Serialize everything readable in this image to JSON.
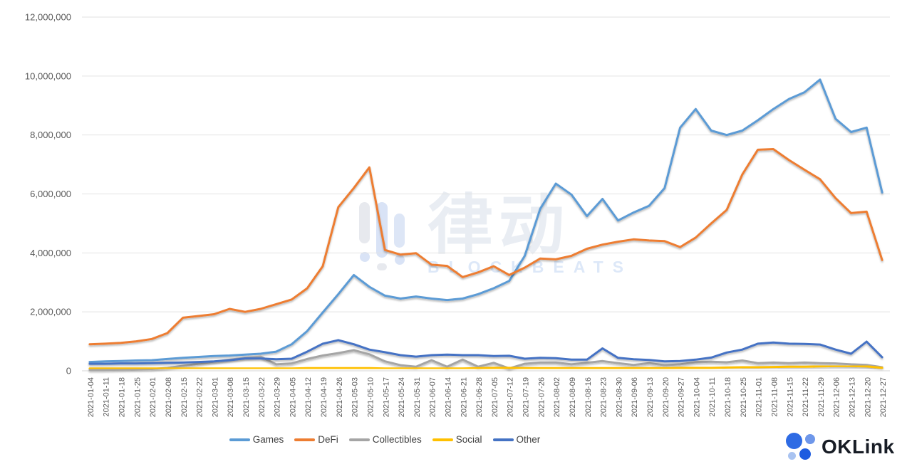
{
  "watermark": {
    "cn": "律动",
    "en": "BLOCKBEATS"
  },
  "brand": {
    "name": "OKLink"
  },
  "chart_data": {
    "type": "line",
    "title": "",
    "xlabel": "",
    "ylabel": "",
    "ylim": [
      0,
      12000000
    ],
    "grid": true,
    "legend_position": "bottom",
    "y_ticks": [
      "0",
      "2,000,000",
      "4,000,000",
      "6,000,000",
      "8,000,000",
      "10,000,000",
      "12,000,000"
    ],
    "categories": [
      "2021-01-04",
      "2021-01-11",
      "2021-01-18",
      "2021-01-25",
      "2021-02-01",
      "2021-02-08",
      "2021-02-15",
      "2021-02-22",
      "2021-03-01",
      "2021-03-08",
      "2021-03-15",
      "2021-03-22",
      "2021-03-29",
      "2021-04-05",
      "2021-04-12",
      "2021-04-19",
      "2021-04-26",
      "2021-05-03",
      "2021-05-10",
      "2021-05-17",
      "2021-05-24",
      "2021-05-31",
      "2021-06-07",
      "2021-06-14",
      "2021-06-21",
      "2021-06-28",
      "2021-07-05",
      "2021-07-12",
      "2021-07-19",
      "2021-07-26",
      "2021-08-02",
      "2021-08-09",
      "2021-08-16",
      "2021-08-23",
      "2021-08-30",
      "2021-09-06",
      "2021-09-13",
      "2021-09-20",
      "2021-09-27",
      "2021-10-04",
      "2021-10-11",
      "2021-10-18",
      "2021-10-25",
      "2021-11-01",
      "2021-11-08",
      "2021-11-15",
      "2021-11-22",
      "2021-11-29",
      "2021-12-06",
      "2021-12-13",
      "2021-12-20",
      "2021-12-27"
    ],
    "series": [
      {
        "name": "Games",
        "color": "#5B9BD5",
        "values": [
          300000,
          320000,
          330000,
          350000,
          360000,
          400000,
          440000,
          470000,
          500000,
          520000,
          550000,
          580000,
          650000,
          900000,
          1350000,
          1980000,
          2600000,
          3250000,
          2850000,
          2550000,
          2450000,
          2520000,
          2450000,
          2400000,
          2450000,
          2600000,
          2800000,
          3050000,
          3900000,
          5500000,
          6350000,
          5980000,
          5250000,
          5830000,
          5100000,
          5370000,
          5600000,
          6200000,
          8250000,
          8880000,
          8150000,
          8000000,
          8150000,
          8500000,
          8880000,
          9220000,
          9450000,
          9880000,
          8550000,
          8100000,
          8250000,
          6050000
        ]
      },
      {
        "name": "DeFi",
        "color": "#ED7D31",
        "values": [
          900000,
          920000,
          950000,
          1000000,
          1080000,
          1280000,
          1800000,
          1860000,
          1920000,
          2100000,
          2000000,
          2100000,
          2260000,
          2420000,
          2800000,
          3550000,
          5550000,
          6200000,
          6900000,
          4100000,
          3940000,
          3990000,
          3600000,
          3560000,
          3180000,
          3340000,
          3550000,
          3250000,
          3500000,
          3810000,
          3780000,
          3900000,
          4140000,
          4280000,
          4380000,
          4460000,
          4420000,
          4400000,
          4200000,
          4520000,
          5000000,
          5460000,
          6660000,
          7500000,
          7520000,
          7150000,
          6820000,
          6500000,
          5860000,
          5350000,
          5400000,
          3760000
        ]
      },
      {
        "name": "Collectibles",
        "color": "#A5A5A5",
        "values": [
          30000,
          30000,
          40000,
          50000,
          60000,
          100000,
          170000,
          240000,
          310000,
          380000,
          440000,
          480000,
          220000,
          250000,
          400000,
          520000,
          600000,
          700000,
          560000,
          320000,
          190000,
          140000,
          360000,
          140000,
          380000,
          140000,
          270000,
          80000,
          240000,
          280000,
          280000,
          220000,
          270000,
          330000,
          260000,
          200000,
          260000,
          190000,
          220000,
          290000,
          310000,
          290000,
          350000,
          260000,
          280000,
          260000,
          280000,
          260000,
          250000,
          220000,
          200000,
          120000
        ]
      },
      {
        "name": "Social",
        "color": "#FFC000",
        "values": [
          80000,
          80000,
          80000,
          80000,
          80000,
          80000,
          80000,
          80000,
          80000,
          80000,
          80000,
          80000,
          80000,
          80000,
          90000,
          90000,
          90000,
          90000,
          90000,
          80000,
          80000,
          80000,
          80000,
          80000,
          80000,
          90000,
          100000,
          100000,
          90000,
          90000,
          90000,
          90000,
          90000,
          90000,
          90000,
          90000,
          90000,
          90000,
          100000,
          100000,
          100000,
          110000,
          120000,
          120000,
          130000,
          140000,
          140000,
          150000,
          160000,
          160000,
          150000,
          100000
        ]
      },
      {
        "name": "Other",
        "color": "#4472C4",
        "values": [
          240000,
          240000,
          250000,
          250000,
          260000,
          270000,
          280000,
          300000,
          320000,
          360000,
          420000,
          420000,
          390000,
          410000,
          650000,
          920000,
          1040000,
          900000,
          720000,
          630000,
          530000,
          480000,
          530000,
          550000,
          530000,
          530000,
          500000,
          510000,
          410000,
          440000,
          430000,
          380000,
          380000,
          760000,
          440000,
          390000,
          370000,
          320000,
          330000,
          380000,
          450000,
          620000,
          720000,
          920000,
          960000,
          920000,
          910000,
          890000,
          720000,
          580000,
          990000,
          460000
        ]
      }
    ]
  }
}
